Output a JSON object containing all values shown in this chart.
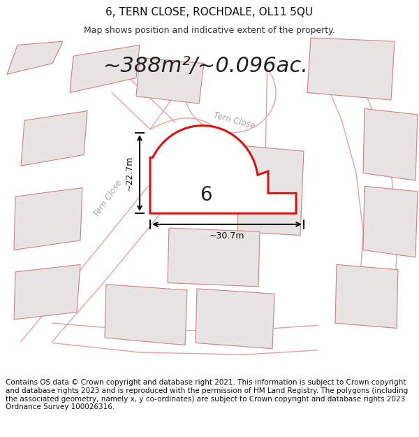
{
  "title": "6, TERN CLOSE, ROCHDALE, OL11 5QU",
  "subtitle": "Map shows position and indicative extent of the property.",
  "area_text": "~388m²/~0.096ac.",
  "number_label": "6",
  "dim_width": "~30.7m",
  "dim_height": "~22.7m",
  "road_label_diag": "Tern Close",
  "road_label_top": "Tern Close",
  "footer": "Contains OS data © Crown copyright and database right 2021. This information is subject to Crown copyright and database rights 2023 and is reproduced with the permission of HM Land Registry. The polygons (including the associated geometry, namely x, y co-ordinates) are subject to Crown copyright and database rights 2023 Ordnance Survey 100026316.",
  "bg_color": "#ffffff",
  "map_bg": "#ffffff",
  "plot_fill": "#ffffff",
  "plot_stroke": "#dd1111",
  "road_color": "#e8a0a0",
  "neighbor_fill": "#e8e4e4",
  "neighbor_stroke": "#d08080",
  "title_fontsize": 11,
  "subtitle_fontsize": 9,
  "area_fontsize": 22,
  "footer_fontsize": 7.5,
  "road_label_color": "#b0a0a0"
}
